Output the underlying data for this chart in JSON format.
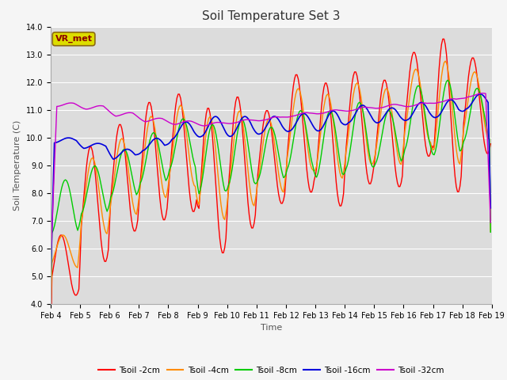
{
  "title": "Soil Temperature Set 3",
  "xlabel": "Time",
  "ylabel": "Soil Temperature (C)",
  "ylim": [
    4.0,
    14.0
  ],
  "yticks": [
    4.0,
    5.0,
    6.0,
    7.0,
    8.0,
    9.0,
    10.0,
    11.0,
    12.0,
    13.0,
    14.0
  ],
  "xtick_labels": [
    "Feb 4",
    "Feb 5",
    "Feb 6",
    "Feb 7",
    "Feb 8",
    "Feb 9",
    "Feb 10",
    "Feb 11",
    "Feb 12",
    "Feb 13",
    "Feb 14",
    "Feb 15",
    "Feb 16",
    "Feb 17",
    "Feb 18",
    "Feb 19"
  ],
  "colors": {
    "Tsoil -2cm": "#ff0000",
    "Tsoil -4cm": "#ff8c00",
    "Tsoil -8cm": "#00cc00",
    "Tsoil -16cm": "#0000dd",
    "Tsoil -32cm": "#cc00cc"
  },
  "background_color": "#dcdcdc",
  "fig_background": "#f5f5f5",
  "legend_label": "VR_met",
  "title_fontsize": 11,
  "axis_fontsize": 8,
  "tick_fontsize": 7,
  "n_days": 15,
  "r_mins": [
    4.3,
    5.5,
    6.6,
    7.0,
    7.3,
    5.8,
    6.7,
    7.6,
    8.0,
    7.5,
    8.3,
    8.2,
    9.3,
    8.0,
    9.4
  ],
  "r_maxs": [
    6.5,
    9.7,
    10.5,
    11.3,
    11.6,
    11.1,
    11.5,
    11.0,
    12.3,
    12.0,
    12.4,
    12.1,
    13.1,
    13.6,
    12.9
  ],
  "o_mins": [
    5.3,
    6.5,
    7.2,
    7.8,
    8.2,
    7.0,
    7.5,
    8.0,
    8.8,
    8.5,
    9.0,
    9.0,
    9.8,
    9.0,
    9.9
  ],
  "o_maxs": [
    6.5,
    9.3,
    10.0,
    10.8,
    11.2,
    10.8,
    11.0,
    10.7,
    11.8,
    11.6,
    12.0,
    11.8,
    12.5,
    12.8,
    12.4
  ],
  "g_mins": [
    6.5,
    7.2,
    7.8,
    8.3,
    8.8,
    7.9,
    8.2,
    8.4,
    8.8,
    8.5,
    8.8,
    9.0,
    9.5,
    9.3,
    9.8
  ],
  "g_maxs": [
    8.5,
    9.0,
    9.6,
    10.2,
    10.7,
    10.5,
    10.7,
    10.4,
    11.0,
    11.0,
    11.3,
    11.0,
    11.9,
    12.1,
    11.8
  ],
  "b_mins": [
    9.8,
    9.6,
    9.2,
    9.5,
    9.9,
    10.0,
    10.0,
    10.1,
    10.2,
    10.2,
    10.5,
    10.5,
    10.6,
    10.7,
    11.0
  ],
  "b_maxs": [
    10.0,
    9.8,
    9.6,
    10.0,
    10.6,
    10.8,
    10.8,
    10.8,
    10.9,
    11.0,
    11.2,
    11.1,
    11.3,
    11.4,
    11.6
  ],
  "p_vals": [
    11.15,
    11.05,
    10.8,
    10.6,
    10.5,
    10.45,
    10.55,
    10.65,
    10.8,
    10.9,
    11.0,
    11.1,
    11.15,
    11.3,
    11.5
  ]
}
